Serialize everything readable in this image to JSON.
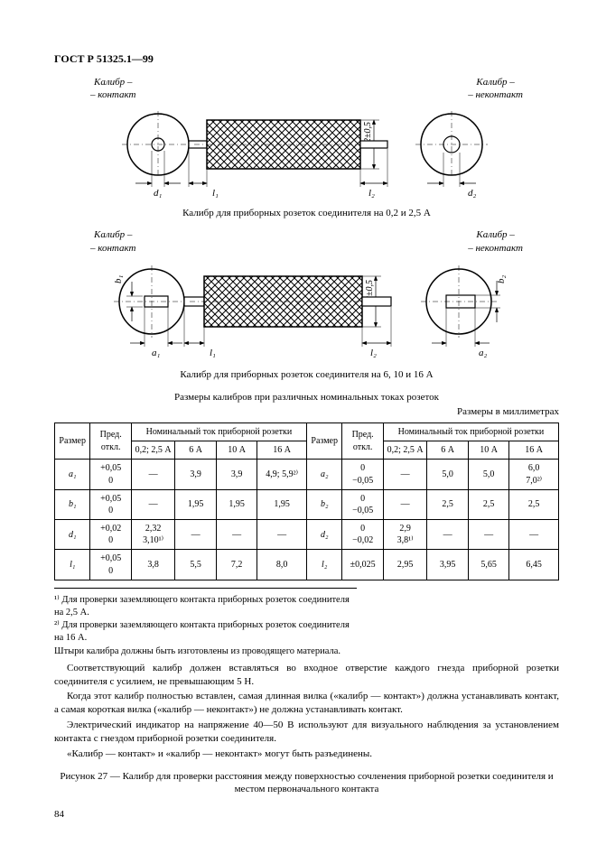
{
  "header": {
    "doc_id": "ГОСТ Р 51325.1—99"
  },
  "fig1": {
    "label_left_1": "Калибр –",
    "label_left_2": "– контакт",
    "label_right_1": "Калибр –",
    "label_right_2": "– неконтакт",
    "dim_d1": "d₁",
    "dim_l1": "l₁",
    "dim_h": "12±0,5",
    "dim_l2": "l₂",
    "dim_d2": "d₂",
    "caption": "Калибр для приборных розеток соединителя на 0,2 и 2,5 А"
  },
  "fig2": {
    "label_left_1": "Калибр –",
    "label_left_2": "– контакт",
    "label_right_1": "Калибр –",
    "label_right_2": "– неконтакт",
    "dim_b1": "b₁",
    "dim_a1": "a₁",
    "dim_l1": "l₁",
    "dim_h": "12±0,5",
    "dim_l2": "l₂",
    "dim_a2": "a₂",
    "dim_b2": "b₂",
    "caption": "Калибр для приборных розеток соединителя на 6, 10 и 16 А"
  },
  "table": {
    "title": "Размеры калибров при различных номинальных токах розеток",
    "units": "Размеры в миллиметрах",
    "h_size": "Размер",
    "h_tol": "Пред. откл.",
    "h_group": "Номинальный ток приборной розетки",
    "h_c1": "0,2; 2,5 А",
    "h_c2": "6 А",
    "h_c3": "10 А",
    "h_c4": "16 А",
    "rows_left": [
      {
        "p": "a₁",
        "t": "+0,05\n0",
        "v": [
          "—",
          "3,9",
          "3,9",
          "4,9; 5,9²⁾"
        ]
      },
      {
        "p": "b₁",
        "t": "+0,05\n0",
        "v": [
          "—",
          "1,95",
          "1,95",
          "1,95"
        ]
      },
      {
        "p": "d₁",
        "t": "+0,02\n0",
        "v": [
          "2,32\n3,10¹⁾",
          "—",
          "—",
          "—"
        ]
      },
      {
        "p": "l₁",
        "t": "+0,05\n0",
        "v": [
          "3,8",
          "5,5",
          "7,2",
          "8,0"
        ]
      }
    ],
    "rows_right": [
      {
        "p": "a₂",
        "t": "0\n−0,05",
        "v": [
          "—",
          "5,0",
          "5,0",
          "6,0\n7,0²⁾"
        ]
      },
      {
        "p": "b₂",
        "t": "0\n−0,05",
        "v": [
          "—",
          "2,5",
          "2,5",
          "2,5"
        ]
      },
      {
        "p": "d₂",
        "t": "0\n−0,02",
        "v": [
          "2,9\n3,8¹⁾",
          "—",
          "—",
          "—"
        ]
      },
      {
        "p": "l₂",
        "t": "±0,025",
        "v": [
          "2,95",
          "3,95",
          "5,65",
          "6,45"
        ]
      }
    ]
  },
  "notes": {
    "n1": "¹⁾ Для проверки заземляющего контакта приборных розеток соединителя на 2,5 А.",
    "n2": "²⁾ Для проверки заземляющего контакта приборных розеток соединителя на 16 А.",
    "n3": "Штыри калибра должны быть изготовлены из проводящего материала."
  },
  "body": {
    "p1": "Соответствующий калибр должен вставляться во входное отверстие каждого гнезда приборной розетки соединителя с усилием, не превышающим 5 Н.",
    "p2": "Когда этот калибр полностью вставлен, самая длинная вилка («калибр — контакт») должна устанавливать контакт, а самая короткая вилка («калибр — неконтакт») не должна устанавливать контакт.",
    "p3": "Электрический индикатор на напряжение 40—50 В используют для визуального наблюдения за установлением контакта с гнездом приборной розетки соединителя.",
    "p4": "«Калибр — контакт» и «калибр — неконтакт» могут быть разъединены."
  },
  "final_caption": "Рисунок 27 — Калибр для проверки расстояния между поверхностью сочленения приборной розетки соединителя и местом первоначального контакта",
  "page_number": "84",
  "svg": {
    "hatch_id": "hatch1",
    "arrow_id": "arr"
  }
}
